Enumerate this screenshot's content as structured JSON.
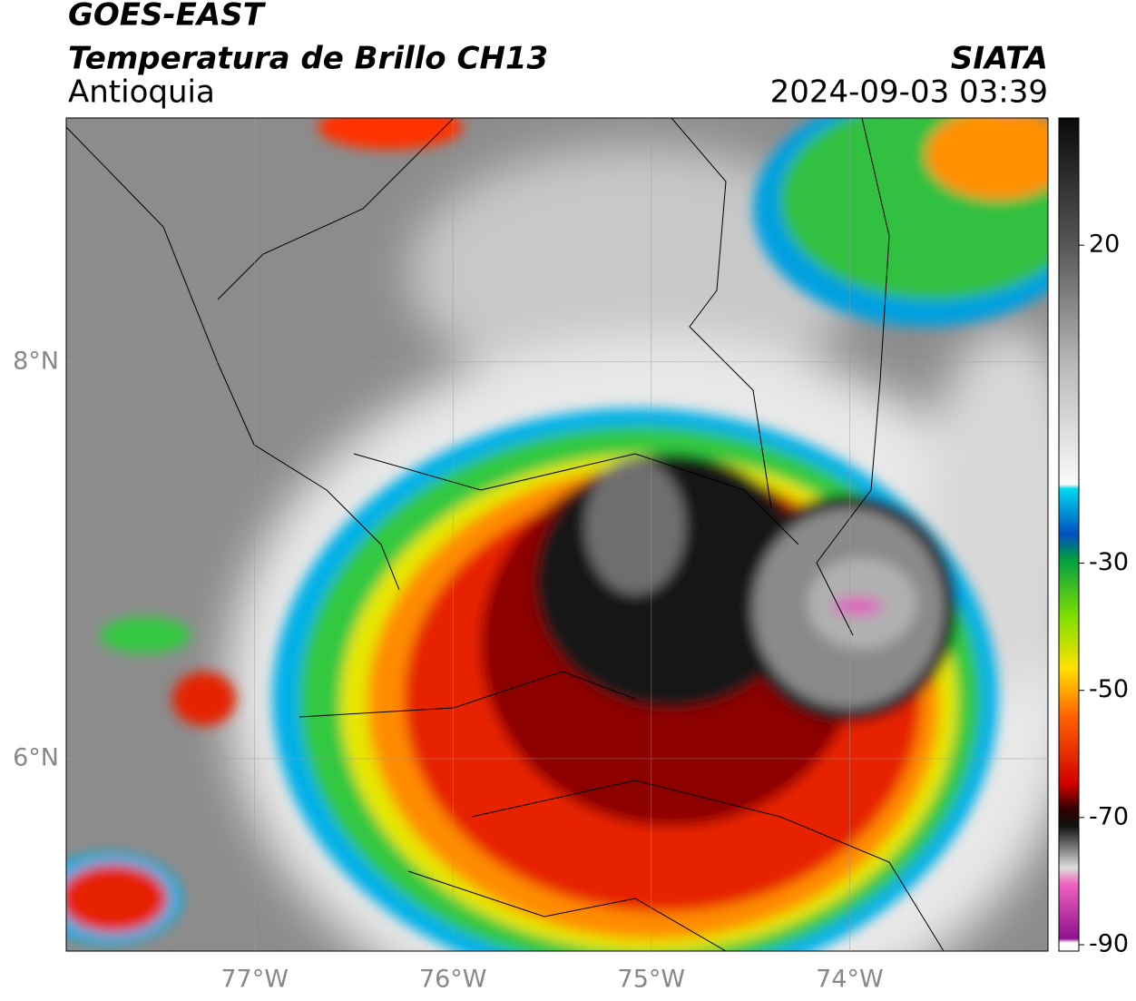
{
  "header": {
    "title": "GOES-EAST",
    "subtitle": "Temperatura de Brillo CH13",
    "region": "Antioquia",
    "source": "SIATA",
    "timestamp": "2024-09-03 03:39"
  },
  "map": {
    "xlim": [
      -77.95,
      -73.0
    ],
    "ylim": [
      5.03,
      9.23
    ],
    "xticks": [
      {
        "value": -77,
        "label": "77°W"
      },
      {
        "value": -76,
        "label": "76°W"
      },
      {
        "value": -75,
        "label": "75°W"
      },
      {
        "value": -74,
        "label": "74°W"
      }
    ],
    "yticks": [
      {
        "value": 6,
        "label": "6°N"
      },
      {
        "value": 8,
        "label": "8°N"
      }
    ],
    "grid": true
  },
  "colorbar": {
    "lim": [
      -91,
      40
    ],
    "ticks": [
      20,
      -30,
      -50,
      -70,
      -90
    ]
  }
}
